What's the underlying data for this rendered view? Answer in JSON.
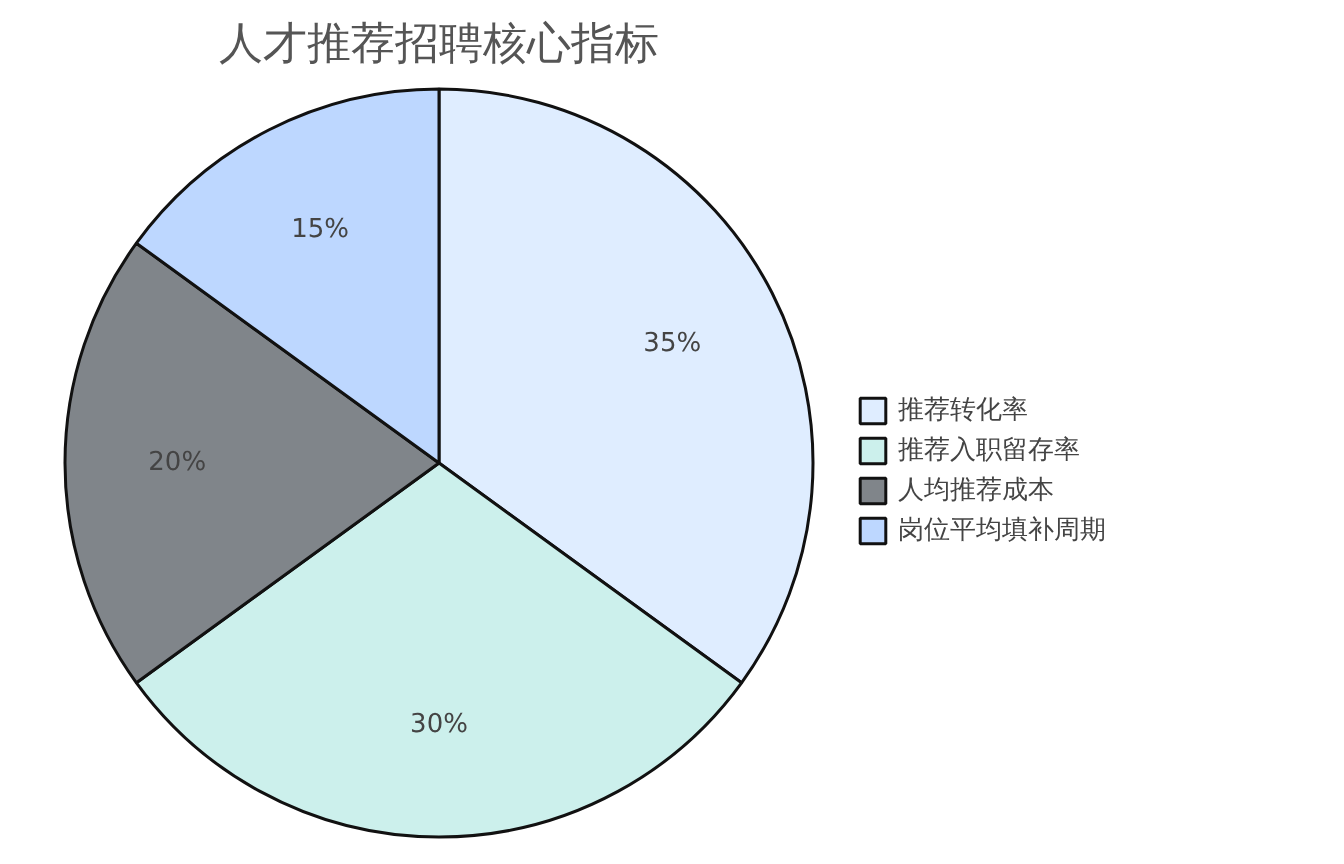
{
  "chart_data": {
    "type": "pie",
    "title": "人才推荐招聘核心指标",
    "categories": [
      "推荐转化率",
      "推荐入职留存率",
      "人均推荐成本",
      "岗位平均填补周期"
    ],
    "values": [
      35,
      30,
      20,
      15
    ],
    "colors": [
      "#dfedff",
      "#ccf0ec",
      "#80858a",
      "#bdd7ff"
    ],
    "value_labels": [
      "35%",
      "30%",
      "20%",
      "15%"
    ],
    "legend": "right"
  }
}
